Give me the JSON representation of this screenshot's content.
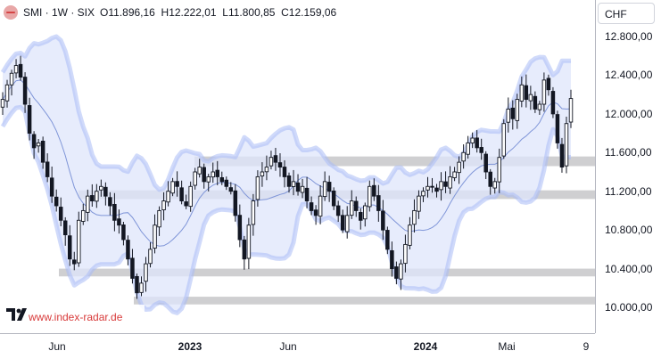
{
  "header": {
    "symbol": "SMI · 1W · SIX",
    "open_label": "O",
    "open": "11.896,16",
    "high_label": "H",
    "high": "12.222,01",
    "low_label": "L",
    "low": "11.800,85",
    "close_label": "C",
    "close": "12.159,06",
    "symbol_icon": "swiss-market-index-icon"
  },
  "currency": "CHF",
  "watermark": "www.index-radar.de",
  "price_ticks": [
    "12.800,00",
    "12.400,00",
    "12.000,00",
    "11.600,00",
    "11.200,00",
    "10.800,00",
    "10.400,00",
    "10.000,00"
  ],
  "time_ticks": [
    {
      "label": "Jun",
      "bold": false
    },
    {
      "label": "2023",
      "bold": true
    },
    {
      "label": "Jun",
      "bold": false
    },
    {
      "label": "2024",
      "bold": true
    },
    {
      "label": "Mai",
      "bold": false
    },
    {
      "label": "9",
      "bold": false
    }
  ],
  "colors": {
    "up": "#131722",
    "down": "#131722",
    "band_fill": "#dfe6fb",
    "band_line": "#a9bcf5",
    "support_zone": "#cfcfd1"
  },
  "chart_data": {
    "type": "candlestick-with-bollinger-bands",
    "interval": "1W",
    "currency": "CHF",
    "ylim": [
      9880,
      12920
    ],
    "support_zones": [
      {
        "from": 11460,
        "to": 11560
      },
      {
        "from": 11120,
        "to": 11210
      },
      {
        "from": 10320,
        "to": 10400
      },
      {
        "from": 10030,
        "to": 10110
      }
    ],
    "weekly_closes": [
      12150,
      12300,
      12420,
      12500,
      12380,
      12100,
      11800,
      11650,
      11700,
      11500,
      11350,
      11150,
      11050,
      10900,
      10750,
      10500,
      10450,
      10900,
      11000,
      11150,
      11100,
      11200,
      11250,
      11150,
      11050,
      10900,
      10850,
      10700,
      10500,
      10300,
      10150,
      10250,
      10450,
      10600,
      10850,
      11000,
      11100,
      11200,
      11300,
      11250,
      11100,
      11050,
      11250,
      11400,
      11450,
      11300,
      11350,
      11400,
      11350,
      11300,
      11250,
      11200,
      10950,
      10700,
      10500,
      10850,
      11100,
      11350,
      11400,
      11450,
      11550,
      11500,
      11450,
      11350,
      11250,
      11300,
      11200,
      11250,
      11100,
      11000,
      10950,
      11150,
      11300,
      11200,
      11050,
      10950,
      10800,
      10950,
      11100,
      11000,
      10900,
      11050,
      11250,
      11150,
      11000,
      10800,
      10600,
      10400,
      10300,
      10450,
      10650,
      10850,
      11000,
      11150,
      11200,
      11250,
      11250,
      11200,
      11300,
      11250,
      11350,
      11400,
      11500,
      11600,
      11700,
      11750,
      11650,
      11600,
      11400,
      11250,
      11300,
      11550,
      11900,
      12050,
      11950,
      12150,
      12300,
      12150,
      12200,
      12050,
      12100,
      12350,
      12250,
      12000,
      11700,
      11450,
      11900,
      12159
    ]
  }
}
